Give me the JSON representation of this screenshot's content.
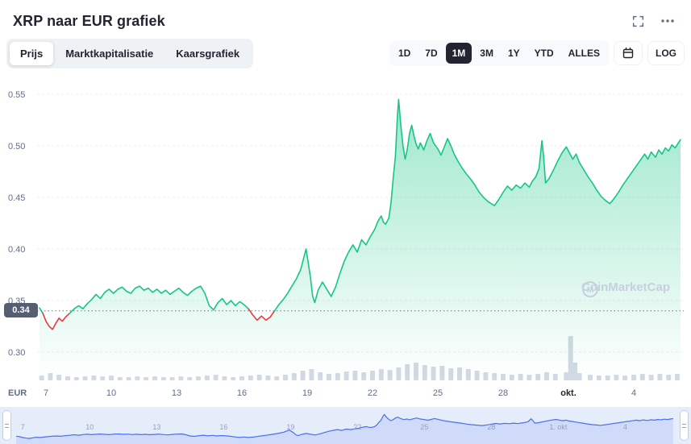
{
  "header": {
    "title": "XRP naar EUR grafiek"
  },
  "tabs": {
    "items": [
      {
        "label": "Prijs",
        "active": true
      },
      {
        "label": "Marktkapitalisatie",
        "active": false
      },
      {
        "label": "Kaarsgrafiek",
        "active": false
      }
    ]
  },
  "ranges": {
    "items": [
      {
        "label": "1D",
        "active": false
      },
      {
        "label": "7D",
        "active": false
      },
      {
        "label": "1M",
        "active": true
      },
      {
        "label": "3M",
        "active": false
      },
      {
        "label": "1Y",
        "active": false
      },
      {
        "label": "YTD",
        "active": false
      },
      {
        "label": "ALLES",
        "active": false
      }
    ],
    "log_label": "LOG"
  },
  "price_badge": "0.34",
  "watermark": "CoinMarketCap",
  "chart_data": {
    "type": "area",
    "title": "XRP naar EUR grafiek",
    "currency": "EUR",
    "ylim": [
      0.3,
      0.55
    ],
    "y_ticks": [
      0.55,
      0.5,
      0.45,
      0.4,
      0.35,
      0.3
    ],
    "x_ticks": [
      {
        "day": 1,
        "label": "7"
      },
      {
        "day": 4,
        "label": "10"
      },
      {
        "day": 7,
        "label": "13"
      },
      {
        "day": 10,
        "label": "16"
      },
      {
        "day": 13,
        "label": "19"
      },
      {
        "day": 16,
        "label": "22"
      },
      {
        "day": 19,
        "label": "25"
      },
      {
        "day": 22,
        "label": "28"
      },
      {
        "day": 25,
        "label": "okt.",
        "emph": true
      },
      {
        "day": 28,
        "label": "4"
      }
    ],
    "reference_price": 0.34,
    "colors": {
      "up": "#16c784",
      "down": "#ea3943",
      "volume": "#d2d9e4",
      "navigator_line": "#4a6ff0"
    },
    "points": [
      [
        0.7,
        0.343
      ],
      [
        0.85,
        0.338
      ],
      [
        1.0,
        0.33
      ],
      [
        1.15,
        0.325
      ],
      [
        1.3,
        0.322
      ],
      [
        1.45,
        0.328
      ],
      [
        1.6,
        0.333
      ],
      [
        1.75,
        0.33
      ],
      [
        1.9,
        0.334
      ],
      [
        2.1,
        0.338
      ],
      [
        2.3,
        0.342
      ],
      [
        2.5,
        0.345
      ],
      [
        2.7,
        0.342
      ],
      [
        2.9,
        0.347
      ],
      [
        3.1,
        0.351
      ],
      [
        3.3,
        0.356
      ],
      [
        3.5,
        0.352
      ],
      [
        3.7,
        0.358
      ],
      [
        3.9,
        0.361
      ],
      [
        4.1,
        0.357
      ],
      [
        4.3,
        0.361
      ],
      [
        4.5,
        0.363
      ],
      [
        4.7,
        0.359
      ],
      [
        4.9,
        0.357
      ],
      [
        5.1,
        0.362
      ],
      [
        5.3,
        0.364
      ],
      [
        5.5,
        0.36
      ],
      [
        5.7,
        0.362
      ],
      [
        5.9,
        0.358
      ],
      [
        6.1,
        0.361
      ],
      [
        6.3,
        0.357
      ],
      [
        6.5,
        0.36
      ],
      [
        6.7,
        0.356
      ],
      [
        6.9,
        0.359
      ],
      [
        7.1,
        0.362
      ],
      [
        7.3,
        0.358
      ],
      [
        7.5,
        0.355
      ],
      [
        7.7,
        0.359
      ],
      [
        7.9,
        0.362
      ],
      [
        8.1,
        0.364
      ],
      [
        8.3,
        0.357
      ],
      [
        8.5,
        0.345
      ],
      [
        8.7,
        0.341
      ],
      [
        8.9,
        0.348
      ],
      [
        9.1,
        0.352
      ],
      [
        9.3,
        0.346
      ],
      [
        9.5,
        0.35
      ],
      [
        9.7,
        0.345
      ],
      [
        9.9,
        0.349
      ],
      [
        10.1,
        0.346
      ],
      [
        10.3,
        0.342
      ],
      [
        10.5,
        0.336
      ],
      [
        10.7,
        0.331
      ],
      [
        10.9,
        0.335
      ],
      [
        11.1,
        0.331
      ],
      [
        11.3,
        0.334
      ],
      [
        11.5,
        0.34
      ],
      [
        11.7,
        0.346
      ],
      [
        11.9,
        0.351
      ],
      [
        12.1,
        0.357
      ],
      [
        12.3,
        0.364
      ],
      [
        12.5,
        0.371
      ],
      [
        12.7,
        0.38
      ],
      [
        12.85,
        0.392
      ],
      [
        12.95,
        0.4
      ],
      [
        13.05,
        0.386
      ],
      [
        13.15,
        0.372
      ],
      [
        13.25,
        0.354
      ],
      [
        13.35,
        0.348
      ],
      [
        13.5,
        0.36
      ],
      [
        13.7,
        0.368
      ],
      [
        13.9,
        0.361
      ],
      [
        14.1,
        0.354
      ],
      [
        14.3,
        0.363
      ],
      [
        14.5,
        0.376
      ],
      [
        14.7,
        0.388
      ],
      [
        14.9,
        0.397
      ],
      [
        15.1,
        0.404
      ],
      [
        15.3,
        0.397
      ],
      [
        15.5,
        0.409
      ],
      [
        15.7,
        0.404
      ],
      [
        15.9,
        0.412
      ],
      [
        16.1,
        0.419
      ],
      [
        16.25,
        0.427
      ],
      [
        16.4,
        0.432
      ],
      [
        16.5,
        0.426
      ],
      [
        16.6,
        0.424
      ],
      [
        16.75,
        0.43
      ],
      [
        16.85,
        0.445
      ],
      [
        16.95,
        0.468
      ],
      [
        17.05,
        0.49
      ],
      [
        17.1,
        0.51
      ],
      [
        17.15,
        0.53
      ],
      [
        17.2,
        0.545
      ],
      [
        17.3,
        0.52
      ],
      [
        17.4,
        0.5
      ],
      [
        17.5,
        0.487
      ],
      [
        17.6,
        0.497
      ],
      [
        17.7,
        0.512
      ],
      [
        17.8,
        0.52
      ],
      [
        17.9,
        0.51
      ],
      [
        18.0,
        0.502
      ],
      [
        18.1,
        0.497
      ],
      [
        18.2,
        0.503
      ],
      [
        18.35,
        0.496
      ],
      [
        18.5,
        0.505
      ],
      [
        18.65,
        0.512
      ],
      [
        18.8,
        0.503
      ],
      [
        19.0,
        0.497
      ],
      [
        19.15,
        0.491
      ],
      [
        19.3,
        0.499
      ],
      [
        19.45,
        0.507
      ],
      [
        19.6,
        0.5
      ],
      [
        19.75,
        0.492
      ],
      [
        19.9,
        0.486
      ],
      [
        20.1,
        0.479
      ],
      [
        20.3,
        0.473
      ],
      [
        20.5,
        0.468
      ],
      [
        20.7,
        0.462
      ],
      [
        20.9,
        0.455
      ],
      [
        21.1,
        0.45
      ],
      [
        21.3,
        0.446
      ],
      [
        21.6,
        0.442
      ],
      [
        21.8,
        0.448
      ],
      [
        22.0,
        0.455
      ],
      [
        22.2,
        0.461
      ],
      [
        22.4,
        0.457
      ],
      [
        22.6,
        0.462
      ],
      [
        22.8,
        0.459
      ],
      [
        23.0,
        0.464
      ],
      [
        23.2,
        0.46
      ],
      [
        23.35,
        0.466
      ],
      [
        23.5,
        0.47
      ],
      [
        23.65,
        0.478
      ],
      [
        23.78,
        0.505
      ],
      [
        23.86,
        0.49
      ],
      [
        23.95,
        0.464
      ],
      [
        24.1,
        0.468
      ],
      [
        24.3,
        0.476
      ],
      [
        24.5,
        0.485
      ],
      [
        24.7,
        0.493
      ],
      [
        24.9,
        0.499
      ],
      [
        25.05,
        0.493
      ],
      [
        25.2,
        0.487
      ],
      [
        25.35,
        0.492
      ],
      [
        25.5,
        0.484
      ],
      [
        25.7,
        0.477
      ],
      [
        25.9,
        0.47
      ],
      [
        26.1,
        0.464
      ],
      [
        26.3,
        0.457
      ],
      [
        26.5,
        0.451
      ],
      [
        26.7,
        0.447
      ],
      [
        26.9,
        0.444
      ],
      [
        27.1,
        0.449
      ],
      [
        27.3,
        0.455
      ],
      [
        27.5,
        0.462
      ],
      [
        27.7,
        0.468
      ],
      [
        27.9,
        0.474
      ],
      [
        28.1,
        0.48
      ],
      [
        28.3,
        0.486
      ],
      [
        28.5,
        0.492
      ],
      [
        28.65,
        0.487
      ],
      [
        28.8,
        0.494
      ],
      [
        29.0,
        0.489
      ],
      [
        29.15,
        0.496
      ],
      [
        29.3,
        0.492
      ],
      [
        29.45,
        0.498
      ],
      [
        29.6,
        0.495
      ],
      [
        29.75,
        0.501
      ],
      [
        29.9,
        0.498
      ],
      [
        30.05,
        0.503
      ],
      [
        30.15,
        0.506
      ]
    ],
    "volume": [
      [
        0.8,
        6
      ],
      [
        1.2,
        9
      ],
      [
        1.6,
        7
      ],
      [
        2.0,
        5
      ],
      [
        2.4,
        4
      ],
      [
        2.8,
        5
      ],
      [
        3.2,
        6
      ],
      [
        3.6,
        5
      ],
      [
        4.0,
        6
      ],
      [
        4.4,
        4
      ],
      [
        4.8,
        4
      ],
      [
        5.2,
        5
      ],
      [
        5.6,
        4
      ],
      [
        6.0,
        5
      ],
      [
        6.4,
        4
      ],
      [
        6.8,
        4
      ],
      [
        7.2,
        5
      ],
      [
        7.6,
        4
      ],
      [
        8.0,
        5
      ],
      [
        8.4,
        6
      ],
      [
        8.8,
        7
      ],
      [
        9.2,
        5
      ],
      [
        9.6,
        4
      ],
      [
        10.0,
        5
      ],
      [
        10.4,
        6
      ],
      [
        10.8,
        7
      ],
      [
        11.2,
        6
      ],
      [
        11.6,
        5
      ],
      [
        12.0,
        7
      ],
      [
        12.4,
        9
      ],
      [
        12.8,
        12
      ],
      [
        13.2,
        14
      ],
      [
        13.6,
        10
      ],
      [
        14.0,
        8
      ],
      [
        14.4,
        9
      ],
      [
        14.8,
        11
      ],
      [
        15.2,
        12
      ],
      [
        15.6,
        10
      ],
      [
        16.0,
        12
      ],
      [
        16.4,
        14
      ],
      [
        16.8,
        13
      ],
      [
        17.2,
        16
      ],
      [
        17.6,
        20
      ],
      [
        18.0,
        22
      ],
      [
        18.4,
        19
      ],
      [
        18.8,
        17
      ],
      [
        19.2,
        18
      ],
      [
        19.6,
        15
      ],
      [
        20.0,
        16
      ],
      [
        20.4,
        14
      ],
      [
        20.8,
        12
      ],
      [
        21.2,
        10
      ],
      [
        21.6,
        9
      ],
      [
        22.0,
        8
      ],
      [
        22.4,
        7
      ],
      [
        22.8,
        8
      ],
      [
        23.2,
        7
      ],
      [
        23.6,
        8
      ],
      [
        24.0,
        10
      ],
      [
        24.4,
        8
      ],
      [
        24.9,
        10
      ],
      [
        25.1,
        55
      ],
      [
        25.3,
        22
      ],
      [
        25.5,
        9
      ],
      [
        26.0,
        7
      ],
      [
        26.4,
        6
      ],
      [
        26.8,
        6
      ],
      [
        27.2,
        7
      ],
      [
        27.6,
        6
      ],
      [
        28.0,
        7
      ],
      [
        28.4,
        8
      ],
      [
        28.8,
        7
      ],
      [
        29.2,
        8
      ],
      [
        29.6,
        7
      ],
      [
        30.0,
        8
      ]
    ]
  },
  "navigator": {
    "labels": [
      {
        "day": 1,
        "label": "7"
      },
      {
        "day": 4,
        "label": "10"
      },
      {
        "day": 7,
        "label": "13"
      },
      {
        "day": 10,
        "label": "16"
      },
      {
        "day": 13,
        "label": "19"
      },
      {
        "day": 16,
        "label": "22"
      },
      {
        "day": 19,
        "label": "25"
      },
      {
        "day": 22,
        "label": "28"
      },
      {
        "day": 25,
        "label": "1. okt"
      },
      {
        "day": 28,
        "label": "4"
      }
    ]
  }
}
